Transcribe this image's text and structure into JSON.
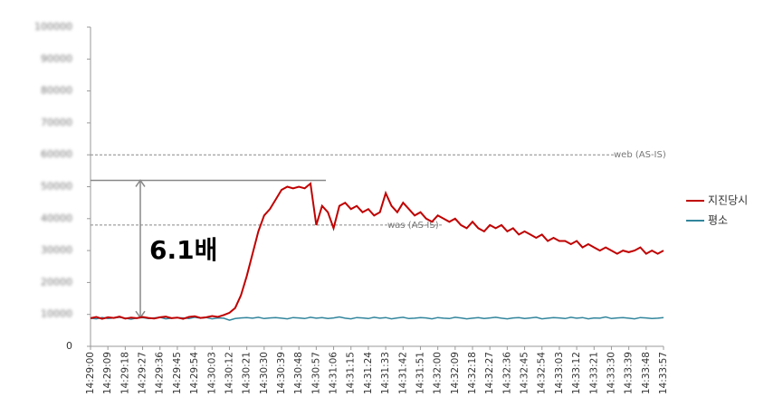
{
  "chart_data": {
    "type": "line",
    "categories": [
      "14:29:00",
      null,
      null,
      "14:29:09",
      null,
      null,
      "14:29:18",
      null,
      null,
      "14:29:27",
      null,
      null,
      "14:29:36",
      null,
      null,
      "14:29:45",
      null,
      null,
      "14:29:54",
      null,
      null,
      "14:30:03",
      null,
      null,
      "14:30:12",
      null,
      null,
      "14:30:21",
      null,
      null,
      "14:30:30",
      null,
      null,
      "14:30:39",
      null,
      null,
      "14:30:48",
      null,
      null,
      "14:30:57",
      null,
      null,
      "14:31:06",
      null,
      null,
      "14:31:15",
      null,
      null,
      "14:31:24",
      null,
      null,
      "14:31:33",
      null,
      null,
      "14:31:42",
      null,
      null,
      "14:31:51",
      null,
      null,
      "14:32:00",
      null,
      null,
      "14:32:09",
      null,
      null,
      "14:32:18",
      null,
      null,
      "14:32:27",
      null,
      null,
      "14:32:36",
      null,
      null,
      "14:32:45",
      null,
      null,
      "14:32:54",
      null,
      null,
      "14:33:03",
      null,
      null,
      "14:33:12",
      null,
      null,
      "14:33:21",
      null,
      null,
      "14:33:30",
      null,
      null,
      "14:33:39",
      null,
      null,
      "14:33:48",
      null,
      null,
      "14:33:57"
    ],
    "series": [
      {
        "name": "지진당시",
        "color": "#c00000",
        "values": [
          8800,
          9200,
          8600,
          9100,
          8900,
          9300,
          8700,
          9000,
          8800,
          9200,
          8900,
          8700,
          9100,
          9300,
          8800,
          9000,
          8600,
          9200,
          9400,
          8900,
          9100,
          9500,
          9200,
          9800,
          10500,
          12000,
          16000,
          22000,
          29000,
          36000,
          41000,
          43000,
          46000,
          49000,
          50000,
          49500,
          50000,
          49500,
          51000,
          38000,
          44000,
          42000,
          37000,
          44000,
          45000,
          43000,
          44000,
          42000,
          43000,
          41000,
          42000,
          48000,
          44000,
          42000,
          45000,
          43000,
          41000,
          42000,
          40000,
          39000,
          41000,
          40000,
          39000,
          40000,
          38000,
          37000,
          39000,
          37000,
          36000,
          38000,
          37000,
          38000,
          36000,
          37000,
          35000,
          36000,
          35000,
          34000,
          35000,
          33000,
          34000,
          33000,
          33000,
          32000,
          33000,
          31000,
          32000,
          31000,
          30000,
          31000,
          30000,
          29000,
          30000,
          29500,
          30000,
          31000,
          29000,
          30000,
          29000,
          30000
        ]
      },
      {
        "name": "평소",
        "color": "#31859c",
        "values": [
          8800,
          8600,
          9000,
          8700,
          8900,
          9100,
          8800,
          8500,
          8900,
          9000,
          8700,
          8900,
          9100,
          8600,
          8800,
          9000,
          8900,
          8700,
          9100,
          8800,
          9000,
          8600,
          8900,
          8800,
          8200,
          8700,
          8900,
          9000,
          8800,
          9100,
          8700,
          8900,
          9000,
          8800,
          8600,
          9000,
          8900,
          8700,
          9100,
          8800,
          9000,
          8700,
          8900,
          9200,
          8800,
          8600,
          9000,
          8900,
          8700,
          9100,
          8800,
          9000,
          8600,
          8900,
          9100,
          8700,
          8800,
          9000,
          8900,
          8600,
          9000,
          8800,
          8700,
          9100,
          8900,
          8600,
          8800,
          9000,
          8700,
          8900,
          9100,
          8800,
          8600,
          8900,
          9000,
          8700,
          8900,
          9100,
          8600,
          8800,
          9000,
          8900,
          8700,
          9100,
          8800,
          9000,
          8600,
          8900,
          8800,
          9200,
          8700,
          8900,
          9000,
          8800,
          8600,
          9000,
          8900,
          8700,
          8800,
          9000
        ]
      }
    ],
    "ylim": [
      0,
      100000
    ],
    "yticks": [
      0,
      10000,
      20000,
      30000,
      40000,
      50000,
      60000,
      70000,
      80000,
      90000,
      100000
    ],
    "reference_lines": [
      {
        "label": "web (AS-IS)",
        "value": 60000
      },
      {
        "label": "was (AS-IS)",
        "value": 38000
      }
    ],
    "annotation": {
      "text": "6.1배",
      "values": [
        9000,
        52000
      ]
    },
    "legend": "right"
  }
}
